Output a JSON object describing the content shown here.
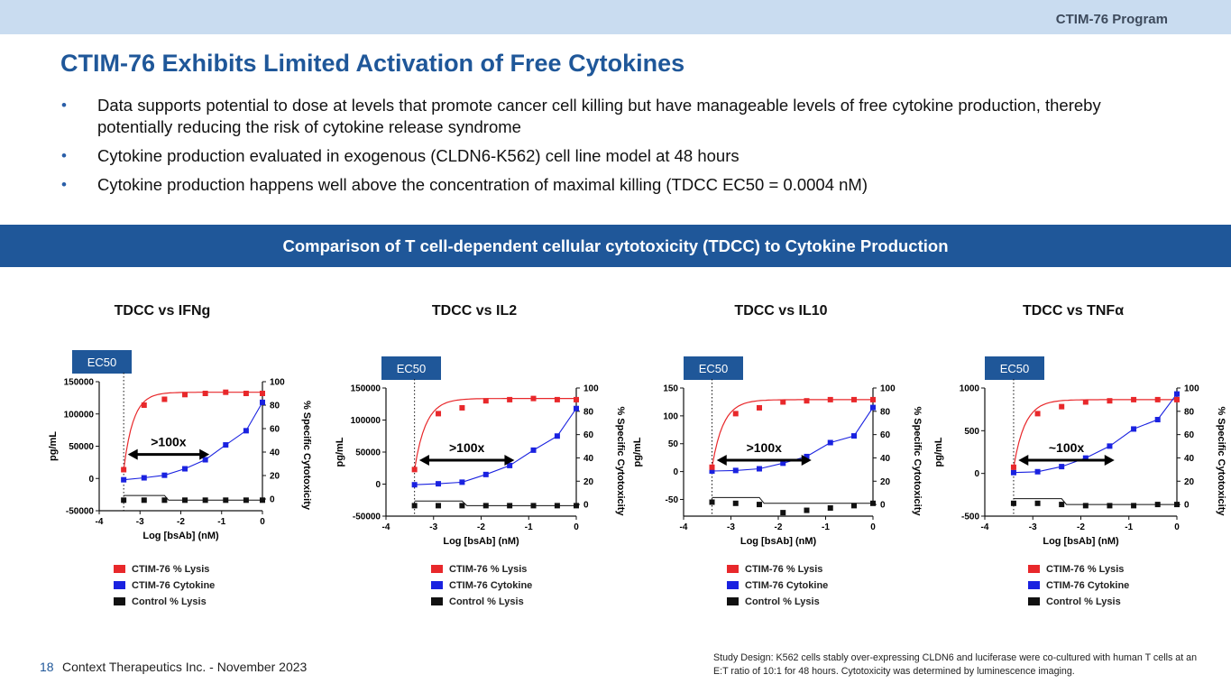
{
  "header": {
    "program": "CTIM-76 Program"
  },
  "title": "CTIM-76 Exhibits Limited Activation of Free Cytokines",
  "bullets": [
    "Data supports potential to dose at levels that promote cancer cell killing but have manageable levels of free cytokine production, thereby potentially reducing the risk of cytokine release syndrome",
    "Cytokine production evaluated in exogenous (CLDN6-K562) cell line model at 48 hours",
    "Cytokine production happens well above the concentration of maximal killing (TDCC EC50 = 0.0004 nM)"
  ],
  "bullet_symbol": "•",
  "banner": "Comparison of T cell-dependent cellular cytotoxicity (TDCC) to Cytokine Production",
  "colors": {
    "lysis": "#e8282b",
    "cytokine": "#1a22e0",
    "control": "#111111",
    "brand": "#1f5799"
  },
  "chart_data": [
    {
      "type": "scatter",
      "title": "TDCC vs IFNg",
      "ec50_label": "EC50",
      "ec50_x": -3.4,
      "annotation": ">100x",
      "xlabel": "Log [bsAb] (nM)",
      "ylabel": "pg/mL",
      "y2label": "% Specific Cytotoxicity",
      "xlim": [
        -4,
        0
      ],
      "xticks": [
        "-4",
        "-3",
        "-2",
        "-1",
        "0"
      ],
      "ylim": [
        -50000,
        150000
      ],
      "yticks": [
        "-50000",
        "0",
        "50000",
        "100000",
        "150000"
      ],
      "y2lim": [
        -10,
        100
      ],
      "y2ticks": [
        "0",
        "20",
        "40",
        "60",
        "80",
        "100"
      ],
      "x": [
        -3.4,
        -2.9,
        -2.4,
        -1.9,
        -1.4,
        -0.9,
        -0.4,
        0
      ],
      "series": [
        {
          "name": "CTIM-76 % Lysis",
          "axis": "right",
          "values": [
            25,
            80,
            85,
            89,
            90,
            91,
            90,
            90
          ]
        },
        {
          "name": "CTIM-76 Cytokine",
          "axis": "left",
          "values": [
            -2000,
            1000,
            5000,
            15000,
            29000,
            52000,
            74000,
            118000
          ]
        },
        {
          "name": "Control % Lysis",
          "axis": "right",
          "values": [
            -1,
            -1,
            -1,
            -1,
            -1,
            -1,
            -1,
            -1
          ]
        }
      ]
    },
    {
      "type": "scatter",
      "title": "TDCC vs IL2",
      "ec50_label": "EC50",
      "ec50_x": -3.4,
      "annotation": ">100x",
      "xlabel": "Log [bsAb] (nM)",
      "ylabel": "pg/mL",
      "y2label": "% Specific Cytotoxicity",
      "xlim": [
        -4,
        0
      ],
      "xticks": [
        "-4",
        "-3",
        "-2",
        "-1",
        "0"
      ],
      "ylim": [
        -50000,
        150000
      ],
      "yticks": [
        "-50000",
        "0",
        "50000",
        "100000",
        "150000"
      ],
      "y2lim": [
        -10,
        100
      ],
      "y2ticks": [
        "0",
        "20",
        "40",
        "60",
        "80",
        "100"
      ],
      "x": [
        -3.4,
        -2.9,
        -2.4,
        -1.9,
        -1.4,
        -0.9,
        -0.4,
        0
      ],
      "series": [
        {
          "name": "CTIM-76 % Lysis",
          "axis": "right",
          "values": [
            30,
            78,
            83,
            89,
            90,
            91,
            90,
            90
          ]
        },
        {
          "name": "CTIM-76 Cytokine",
          "axis": "left",
          "values": [
            -1000,
            500,
            3000,
            15000,
            29000,
            53000,
            75000,
            118000
          ]
        },
        {
          "name": "Control % Lysis",
          "axis": "right",
          "values": [
            -1,
            -1,
            -1,
            -1,
            -1,
            -1,
            -1,
            -1
          ]
        }
      ]
    },
    {
      "type": "scatter",
      "title": "TDCC vs IL10",
      "ec50_label": "EC50",
      "ec50_x": -3.4,
      "annotation": ">100x",
      "xlabel": "Log [bsAb] (nM)",
      "ylabel": "pg/mL",
      "y2label": "% Specific Cytotoxicity",
      "xlim": [
        -4,
        0
      ],
      "xticks": [
        "-4",
        "-3",
        "-2",
        "-1",
        "0"
      ],
      "ylim": [
        -80,
        150
      ],
      "yticks": [
        "-50",
        "0",
        "50",
        "100",
        "150"
      ],
      "y2lim": [
        -10,
        100
      ],
      "y2ticks": [
        "0",
        "20",
        "40",
        "60",
        "80",
        "100"
      ],
      "x": [
        -3.4,
        -2.9,
        -2.4,
        -1.9,
        -1.4,
        -0.9,
        -0.4,
        0
      ],
      "series": [
        {
          "name": "CTIM-76 % Lysis",
          "axis": "right",
          "values": [
            32,
            78,
            83,
            88,
            89,
            90,
            90,
            90
          ]
        },
        {
          "name": "CTIM-76 Cytokine",
          "axis": "left",
          "values": [
            1,
            2,
            5,
            15,
            27,
            52,
            64,
            115
          ]
        },
        {
          "name": "Control % Lysis",
          "axis": "right",
          "values": [
            2,
            1,
            0,
            -7,
            -5,
            -3,
            -1,
            1
          ]
        }
      ]
    },
    {
      "type": "scatter",
      "title": "TDCC vs TNFα",
      "ec50_label": "EC50",
      "ec50_x": -3.4,
      "annotation": "~100x",
      "xlabel": "Log [bsAb] (nM)",
      "ylabel": "pg/mL",
      "y2label": "% Specific Cytotoxicity",
      "xlim": [
        -4,
        0
      ],
      "xticks": [
        "-4",
        "-3",
        "-2",
        "-1",
        "0"
      ],
      "ylim": [
        -500,
        1000
      ],
      "yticks": [
        "-500",
        "0",
        "500",
        "1000"
      ],
      "y2lim": [
        -10,
        100
      ],
      "y2ticks": [
        "0",
        "20",
        "40",
        "60",
        "80",
        "100"
      ],
      "x": [
        -3.4,
        -2.9,
        -2.4,
        -1.9,
        -1.4,
        -0.9,
        -0.4,
        0
      ],
      "series": [
        {
          "name": "CTIM-76 % Lysis",
          "axis": "right",
          "values": [
            32,
            78,
            84,
            88,
            89,
            90,
            90,
            90
          ]
        },
        {
          "name": "CTIM-76 Cytokine",
          "axis": "left",
          "values": [
            10,
            20,
            80,
            180,
            320,
            520,
            630,
            930
          ]
        },
        {
          "name": "Control % Lysis",
          "axis": "right",
          "values": [
            1,
            1,
            0,
            -1,
            -1,
            -1,
            0,
            0
          ]
        }
      ]
    }
  ],
  "footer": {
    "page_number": "18",
    "company": "Context Therapeutics Inc. - November 2023",
    "study_design": "Study Design:  K562 cells stably over-expressing CLDN6 and luciferase were co-cultured with human T cells at an E:T ratio of 10:1 for 48 hours. Cytotoxicity was determined by luminescence imaging."
  }
}
